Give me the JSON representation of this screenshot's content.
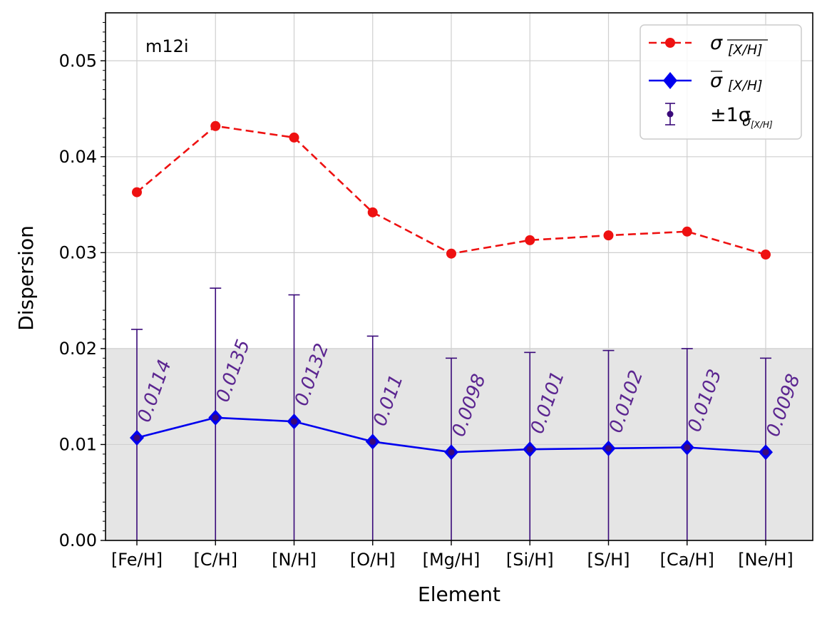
{
  "chart_data": {
    "type": "line",
    "panel_label": "m12i",
    "xlabel": "Element",
    "ylabel": "Dispersion",
    "categories": [
      "[Fe/H]",
      "[C/H]",
      "[N/H]",
      "[O/H]",
      "[Mg/H]",
      "[Si/H]",
      "[S/H]",
      "[Ca/H]",
      "[Ne/H]"
    ],
    "ylim": [
      0,
      0.055
    ],
    "yticks": [
      "0.00",
      "0.01",
      "0.02",
      "0.03",
      "0.04",
      "0.05"
    ],
    "grid": true,
    "legend_position": "top-right",
    "shaded_band": {
      "y_from": 0,
      "y_to": 0.02,
      "color": "#e5e5e5"
    },
    "series": [
      {
        "legend_text": "σ",
        "legend_sub": "[X/H]",
        "style": "dashed-circle",
        "color": "#ee1111",
        "values": [
          0.0363,
          0.0432,
          0.042,
          0.0342,
          0.0299,
          0.0313,
          0.0318,
          0.0322,
          0.0298
        ]
      },
      {
        "legend_text": "σ",
        "legend_sub": "[X/H]",
        "style": "solid-diamond",
        "color": "#0000ee",
        "values": [
          0.0107,
          0.0128,
          0.0124,
          0.0103,
          0.0092,
          0.0095,
          0.0096,
          0.0097,
          0.0092
        ],
        "error_upper": [
          0.022,
          0.0263,
          0.0256,
          0.0213,
          0.019,
          0.0196,
          0.0198,
          0.02,
          0.019
        ],
        "error_lower": [
          0,
          0,
          0,
          0,
          0,
          0,
          0,
          0,
          0
        ],
        "error_legend_text": "±1σ",
        "error_legend_sub": "σ",
        "error_legend_subsub": "[X/H]",
        "error_color": "#3a0a7a",
        "annotations": [
          "0.0114",
          "0.0135",
          "0.0132",
          "0.011",
          "0.0098",
          "0.0101",
          "0.0102",
          "0.0103",
          "0.0098"
        ],
        "annotation_color": "#5b2590"
      }
    ]
  }
}
